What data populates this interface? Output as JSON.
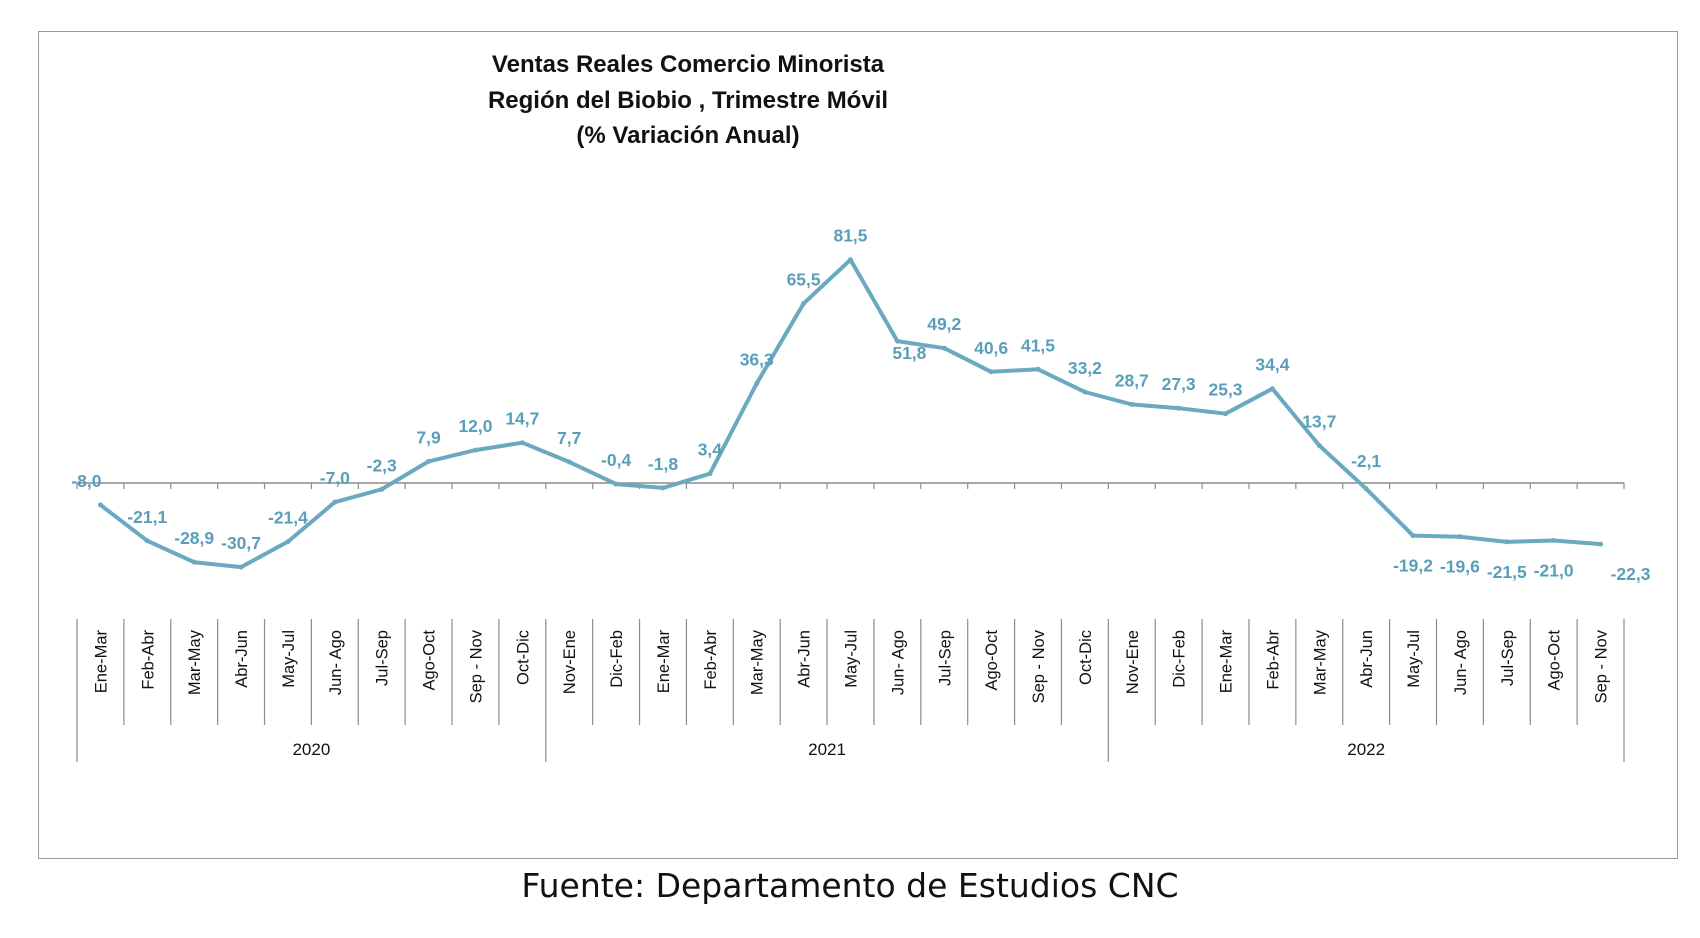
{
  "colors": {
    "line": "#6aa9c0",
    "labels": "#5a9fba",
    "axis": "#8c8c8c",
    "frame": "#9a9a9a"
  },
  "chart_data": {
    "type": "line",
    "title": "Ventas Reales Comercio Minorista",
    "subtitle": "Región del Biobio , Trimestre Móvil",
    "unit_line": "(% Variación Anual)",
    "categories": [
      "Ene-Mar",
      "Feb-Abr",
      "Mar-May",
      "Abr-Jun",
      "May-Jul",
      "Jun- Ago",
      "Jul-Sep",
      "Ago-Oct",
      "Sep - Nov",
      "Oct-Dic",
      "Nov-Ene",
      "Dic-Feb",
      "Ene-Mar",
      "Feb-Abr",
      "Mar-May",
      "Abr-Jun",
      "May-Jul",
      "Jun- Ago",
      "Jul-Sep",
      "Ago-Oct",
      "Sep - Nov",
      "Oct-Dic",
      "Nov-Ene",
      "Dic-Feb",
      "Ene-Mar",
      "Feb-Abr",
      "Mar-May",
      "Abr-Jun",
      "May-Jul",
      "Jun- Ago",
      "Jul-Sep",
      "Ago-Oct",
      "Sep - Nov"
    ],
    "values": [
      -8.0,
      -21.1,
      -28.9,
      -30.7,
      -21.4,
      -7.0,
      -2.3,
      7.9,
      12.0,
      14.7,
      7.7,
      -0.4,
      -1.8,
      3.4,
      36.3,
      65.5,
      81.5,
      51.8,
      49.2,
      40.6,
      41.5,
      33.2,
      28.7,
      27.3,
      25.3,
      34.4,
      13.7,
      -2.1,
      -19.2,
      -19.6,
      -21.5,
      -21.0,
      -22.3
    ],
    "data_labels": [
      "-8,0",
      "-21,1",
      "-28,9",
      "-30,7",
      "-21,4",
      "-7,0",
      "-2,3",
      "7,9",
      "12,0",
      "14,7",
      "7,7",
      "-0,4",
      "-1,8",
      "3,4",
      "36,3",
      "65,5",
      "81,5",
      "51,8",
      "49,2",
      "40,6",
      "41,5",
      "33,2",
      "28,7",
      "27,3",
      "25,3",
      "34,4",
      "13,7",
      "-2,1",
      "-19,2",
      "-19,6",
      "-21,5",
      "-21,0",
      "-22,3"
    ],
    "year_groups": [
      {
        "label": "2020",
        "start": 0,
        "end": 9
      },
      {
        "label": "2021",
        "start": 10,
        "end": 21
      },
      {
        "label": "2022",
        "start": 22,
        "end": 32
      }
    ],
    "ylim": [
      -40,
      90
    ],
    "grid": false,
    "legend": "none"
  },
  "footer": {
    "source": "Fuente: Departamento de Estudios CNC"
  }
}
